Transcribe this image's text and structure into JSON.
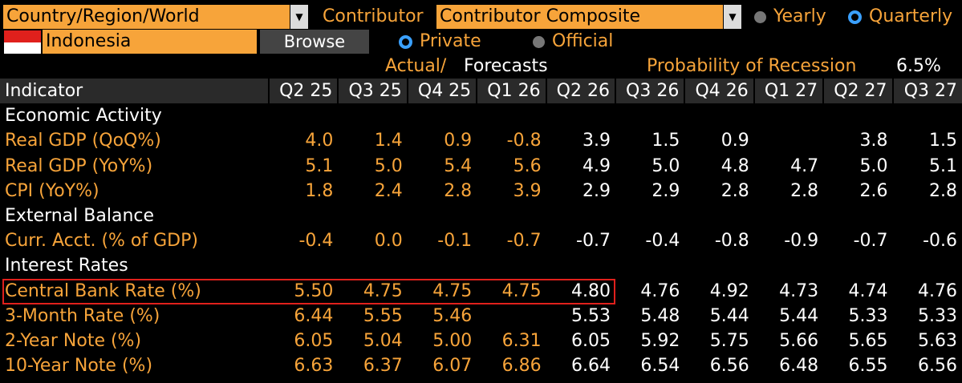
{
  "header": {
    "scope_dropdown": "Country/Region/World",
    "contributor_label": "Contributor",
    "contributor_dropdown": "Contributor Composite",
    "yearly_label": "Yearly",
    "quarterly_label": "Quarterly",
    "country": "Indonesia",
    "browse_label": "Browse",
    "private_label": "Private",
    "official_label": "Official",
    "actual_label": "Actual/",
    "forecasts_label": "Forecasts",
    "recession_label": "Probability of Recession",
    "recession_value": "6.5%",
    "selected_frequency": "Quarterly",
    "selected_source": "Private"
  },
  "colors": {
    "accent_orange": "#f7a43a",
    "radio_blue": "#3aa0ff",
    "highlight_red": "#e0201c"
  },
  "table": {
    "indicator_header": "Indicator",
    "columns": [
      "Q2 25",
      "Q3 25",
      "Q4 25",
      "Q1 26",
      "Q2 26",
      "Q3 26",
      "Q4 26",
      "Q1 27",
      "Q2 27",
      "Q3 27"
    ],
    "actual_column_count": 4,
    "rows": [
      {
        "type": "section",
        "label": "Economic Activity"
      },
      {
        "type": "data",
        "label": "Real GDP (QoQ%)",
        "values": [
          "4.0",
          "1.4",
          "0.9",
          "-0.8",
          "3.9",
          "1.5",
          "0.9",
          "",
          "3.8",
          "1.5"
        ]
      },
      {
        "type": "data",
        "label": "Real GDP (YoY%)",
        "values": [
          "5.1",
          "5.0",
          "5.4",
          "5.6",
          "4.9",
          "5.0",
          "4.8",
          "4.7",
          "5.0",
          "5.1"
        ]
      },
      {
        "type": "data",
        "label": "CPI (YoY%)",
        "values": [
          "1.8",
          "2.4",
          "2.8",
          "3.9",
          "2.9",
          "2.9",
          "2.8",
          "2.8",
          "2.6",
          "2.8"
        ]
      },
      {
        "type": "section",
        "label": "External Balance"
      },
      {
        "type": "data",
        "label": "Curr. Acct. (% of GDP)",
        "values": [
          "-0.4",
          "0.0",
          "-0.1",
          "-0.7",
          "-0.7",
          "-0.4",
          "-0.8",
          "-0.9",
          "-0.7",
          "-0.6"
        ]
      },
      {
        "type": "section",
        "label": "Interest Rates"
      },
      {
        "type": "data",
        "label": "Central Bank Rate (%)",
        "values": [
          "5.50",
          "4.75",
          "4.75",
          "4.75",
          "4.80",
          "4.76",
          "4.92",
          "4.73",
          "4.74",
          "4.76"
        ]
      },
      {
        "type": "data",
        "label": "3-Month Rate (%)",
        "values": [
          "6.44",
          "5.55",
          "5.46",
          "",
          "5.53",
          "5.48",
          "5.44",
          "5.44",
          "5.33",
          "5.33"
        ]
      },
      {
        "type": "data",
        "label": "2-Year Note (%)",
        "values": [
          "6.05",
          "5.04",
          "5.00",
          "6.31",
          "6.05",
          "5.92",
          "5.75",
          "5.66",
          "5.65",
          "5.63"
        ]
      },
      {
        "type": "data",
        "label": "10-Year Note (%)",
        "values": [
          "6.63",
          "6.37",
          "6.07",
          "6.86",
          "6.64",
          "6.54",
          "6.56",
          "6.48",
          "6.55",
          "6.56"
        ]
      }
    ]
  }
}
